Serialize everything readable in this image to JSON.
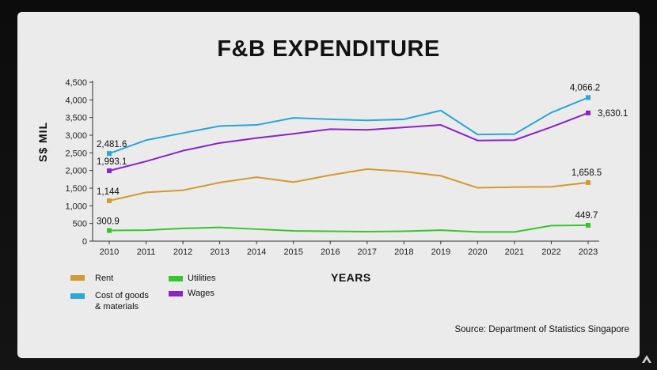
{
  "chart_data": {
    "type": "line",
    "title": "F&B EXPENDITURE",
    "ylabel": "S$ MIL",
    "xlabel": "YEARS",
    "x": [
      2010,
      2011,
      2012,
      2013,
      2014,
      2015,
      2016,
      2017,
      2018,
      2019,
      2020,
      2021,
      2022,
      2023
    ],
    "ylim": [
      0,
      4500
    ],
    "yticks": [
      0,
      500,
      1000,
      1500,
      2000,
      2500,
      3000,
      3500,
      4000,
      4500
    ],
    "ytick_labels": [
      "0",
      "500",
      "1,000",
      "1,500",
      "2,000",
      "2,500",
      "3,000",
      "3,500",
      "4,000",
      "4,500"
    ],
    "grid": false,
    "legend_position": "bottom-left",
    "series": [
      {
        "name": "Rent",
        "key": "rent",
        "color": "#d39a2e",
        "values": [
          1144,
          1380,
          1440,
          1660,
          1810,
          1670,
          1870,
          2040,
          1970,
          1850,
          1510,
          1530,
          1540,
          1658.5
        ],
        "start_label": "1,144",
        "end_label": "1,658.5"
      },
      {
        "name": "Cost of goods & materials",
        "key": "cost",
        "color": "#2aa6d8",
        "values": [
          2481.6,
          2860,
          3060,
          3260,
          3290,
          3490,
          3450,
          3420,
          3450,
          3700,
          3020,
          3030,
          3640,
          4066.2
        ],
        "start_label": "2,481.6",
        "end_label": "4,066.2"
      },
      {
        "name": "Utilities",
        "key": "utilities",
        "color": "#35c62c",
        "values": [
          300.9,
          310,
          360,
          390,
          340,
          290,
          280,
          270,
          280,
          310,
          260,
          260,
          440,
          449.7
        ],
        "start_label": "300.9",
        "end_label": "449.7"
      },
      {
        "name": "Wages",
        "key": "wages",
        "color": "#8a23c9",
        "values": [
          1993.1,
          2260,
          2560,
          2780,
          2920,
          3040,
          3170,
          3150,
          3220,
          3290,
          2850,
          2860,
          3230,
          3630.1
        ],
        "start_label": "1,993.1",
        "end_label": "3,630.1"
      }
    ]
  },
  "legend": {
    "rent": "Rent",
    "cost_line1": "Cost of goods",
    "cost_line2": "& materials",
    "utilities": "Utilities",
    "wages": "Wages"
  },
  "source": "Source: Department of Statistics Singapore",
  "brand": {
    "icon": "broadcaster-logo-icon"
  }
}
